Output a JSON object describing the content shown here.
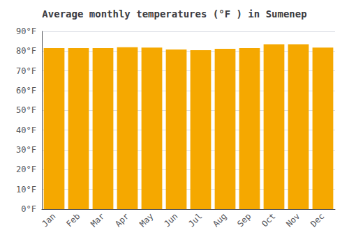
{
  "chart_data": {
    "type": "bar",
    "title": "Average monthly temperatures (°F ) in Sumenep",
    "categories": [
      "Jan",
      "Feb",
      "Mar",
      "Apr",
      "May",
      "Jun",
      "Jul",
      "Aug",
      "Sep",
      "Oct",
      "Nov",
      "Dec"
    ],
    "values": [
      81.5,
      81.5,
      81.5,
      82.0,
      81.8,
      80.8,
      80.5,
      81.2,
      81.5,
      83.5,
      83.5,
      81.8
    ],
    "color": "#F5A800",
    "ylim": [
      0,
      90
    ],
    "yticks": [
      {
        "value": 0,
        "label": "0°F"
      },
      {
        "value": 10,
        "label": "10°F"
      },
      {
        "value": 20,
        "label": "20°F"
      },
      {
        "value": 30,
        "label": "30°F"
      },
      {
        "value": 40,
        "label": "40°F"
      },
      {
        "value": 50,
        "label": "50°F"
      },
      {
        "value": 60,
        "label": "60°F"
      },
      {
        "value": 70,
        "label": "70°F"
      },
      {
        "value": 80,
        "label": "80°F"
      },
      {
        "value": 90,
        "label": "90°F"
      }
    ],
    "grid": true
  }
}
